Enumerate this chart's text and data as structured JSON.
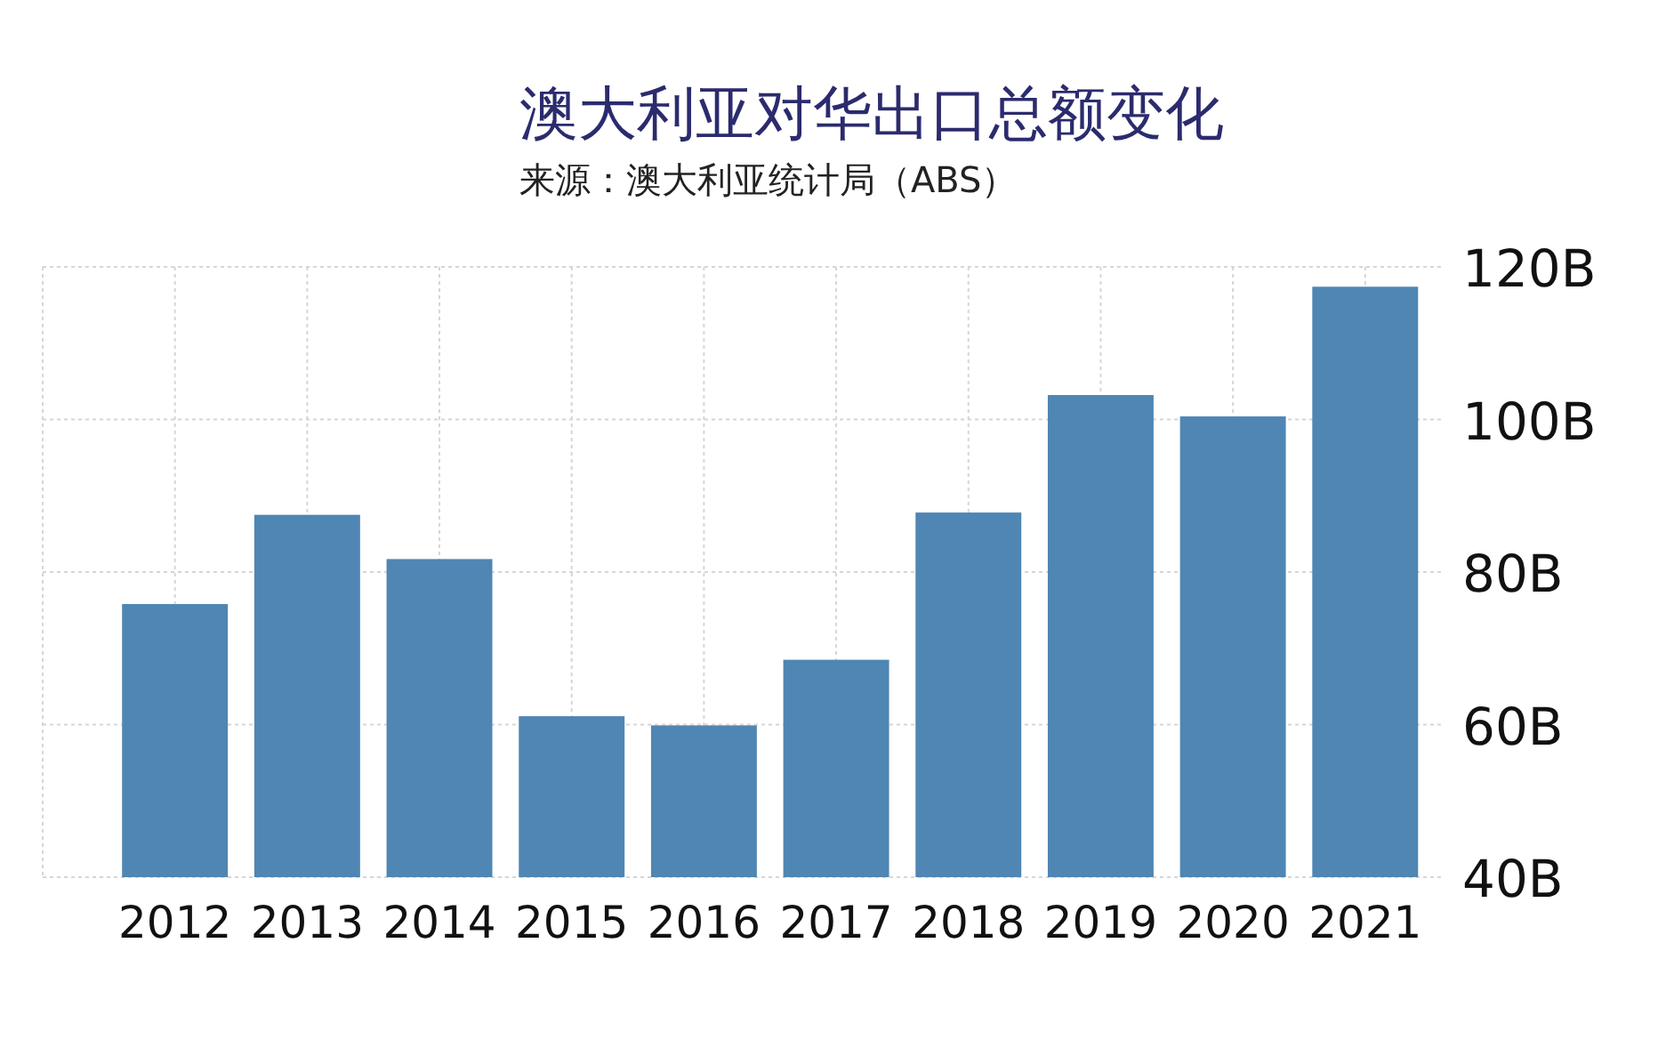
{
  "chart_data": {
    "type": "bar",
    "title": "澳大利亚对华出口总额变化",
    "subtitle": "来源：澳大利亚统计局（ABS）",
    "categories": [
      "2012",
      "2013",
      "2014",
      "2015",
      "2016",
      "2017",
      "2018",
      "2019",
      "2020",
      "2021"
    ],
    "values": [
      75.8,
      87.5,
      81.7,
      61.1,
      59.9,
      68.5,
      87.8,
      103.2,
      100.4,
      117.4
    ],
    "color": "#4f86b3",
    "ylim": [
      40,
      120
    ],
    "yticks": [
      {
        "value": 40,
        "label": "40B"
      },
      {
        "value": 60,
        "label": "60B"
      },
      {
        "value": 80,
        "label": "80B"
      },
      {
        "value": 100,
        "label": "100B"
      },
      {
        "value": 120,
        "label": "120B"
      }
    ],
    "grid": true
  }
}
